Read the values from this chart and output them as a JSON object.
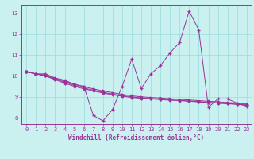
{
  "xlabel": "Windchill (Refroidissement éolien,°C)",
  "ylabel": "",
  "bg_color": "#caf0f0",
  "line_color": "#993399",
  "grid_color": "#99dddd",
  "x": [
    0,
    1,
    2,
    3,
    4,
    5,
    6,
    7,
    8,
    9,
    10,
    11,
    12,
    13,
    14,
    15,
    16,
    17,
    18,
    19,
    20,
    21,
    22,
    23
  ],
  "line1": [
    10.2,
    10.1,
    10.1,
    9.9,
    9.8,
    9.6,
    9.5,
    8.1,
    7.85,
    8.4,
    9.5,
    10.8,
    9.4,
    10.1,
    10.5,
    11.1,
    11.6,
    13.1,
    12.2,
    8.5,
    8.9,
    8.9,
    8.7,
    8.55
  ],
  "line2": [
    10.2,
    10.1,
    10.05,
    9.88,
    9.75,
    9.6,
    9.48,
    9.38,
    9.28,
    9.2,
    9.12,
    9.05,
    9.0,
    8.97,
    8.94,
    8.91,
    8.88,
    8.85,
    8.82,
    8.79,
    8.76,
    8.73,
    8.7,
    8.65
  ],
  "line3": [
    10.2,
    10.1,
    10.0,
    9.82,
    9.65,
    9.5,
    9.38,
    9.28,
    9.18,
    9.1,
    9.03,
    8.97,
    8.93,
    8.9,
    8.87,
    8.84,
    8.82,
    8.79,
    8.76,
    8.73,
    8.7,
    8.67,
    8.64,
    8.6
  ],
  "line4": [
    10.2,
    10.1,
    10.0,
    9.85,
    9.7,
    9.55,
    9.42,
    9.32,
    9.22,
    9.13,
    9.06,
    9.0,
    8.95,
    8.92,
    8.89,
    8.86,
    8.83,
    8.8,
    8.77,
    8.74,
    8.71,
    8.68,
    8.65,
    8.61
  ],
  "ylim": [
    7.7,
    13.4
  ],
  "xlim": [
    -0.5,
    23.5
  ],
  "yticks": [
    8,
    9,
    10,
    11,
    12,
    13
  ],
  "xticks": [
    0,
    1,
    2,
    3,
    4,
    5,
    6,
    7,
    8,
    9,
    10,
    11,
    12,
    13,
    14,
    15,
    16,
    17,
    18,
    19,
    20,
    21,
    22,
    23
  ]
}
